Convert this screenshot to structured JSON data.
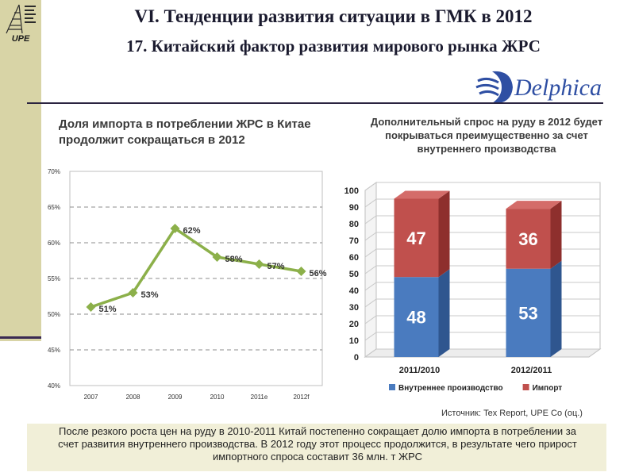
{
  "slide": {
    "title": "VI. Тенденции развития ситуации в ГМК в 2012",
    "subtitle": "17. Китайский фактор развития мирового рынка ЖРС",
    "logo_text": "UPE",
    "brand_text": "Delphica",
    "left_heading": "Доля импорта в потреблении ЖРС в Китае продолжит сокращаться в 2012",
    "right_heading": "Дополнительный спрос на руду в 2012 будет покрываться преимущественно за счет внутреннего производства",
    "source": "Источник: Tex Report, UPE Co (оц.)",
    "summary": "После резкого роста цен на руду в 2010-2011 Китай постепенно сокращает долю импорта в потреблении за счет развития внутреннего производства. В 2012 году этот процесс продолжится, в результате чего прирост импортного спроса составит 36 млн. т ЖРС"
  },
  "chart_data": [
    {
      "type": "line",
      "x": [
        "2007",
        "2008",
        "2009",
        "2010",
        "2011e",
        "2012f"
      ],
      "series": [
        {
          "values": [
            51,
            53,
            62,
            58,
            57,
            56
          ],
          "labels": [
            "51%",
            "53%",
            "62%",
            "58%",
            "57%",
            "56%"
          ],
          "color": "#8cb04a"
        }
      ],
      "ylim": [
        40,
        70
      ],
      "yticks": [
        "40%",
        "45%",
        "50%",
        "55%",
        "60%",
        "65%",
        "70%"
      ],
      "grid": true
    },
    {
      "type": "bar",
      "stacked": true,
      "categories": [
        "2011/2010",
        "2012/2011"
      ],
      "series": [
        {
          "name": "Внутреннее производство",
          "values": [
            48,
            53
          ],
          "labels": [
            "48",
            "53"
          ],
          "color": "#4a7bbf"
        },
        {
          "name": "Импорт",
          "values": [
            47,
            36
          ],
          "labels": [
            "47",
            "36"
          ],
          "color": "#c0504d"
        }
      ],
      "ylim": [
        0,
        100
      ],
      "yticks": [
        "0",
        "10",
        "20",
        "30",
        "40",
        "50",
        "60",
        "70",
        "80",
        "90",
        "100"
      ],
      "legend": "bottom",
      "grid": true
    }
  ]
}
